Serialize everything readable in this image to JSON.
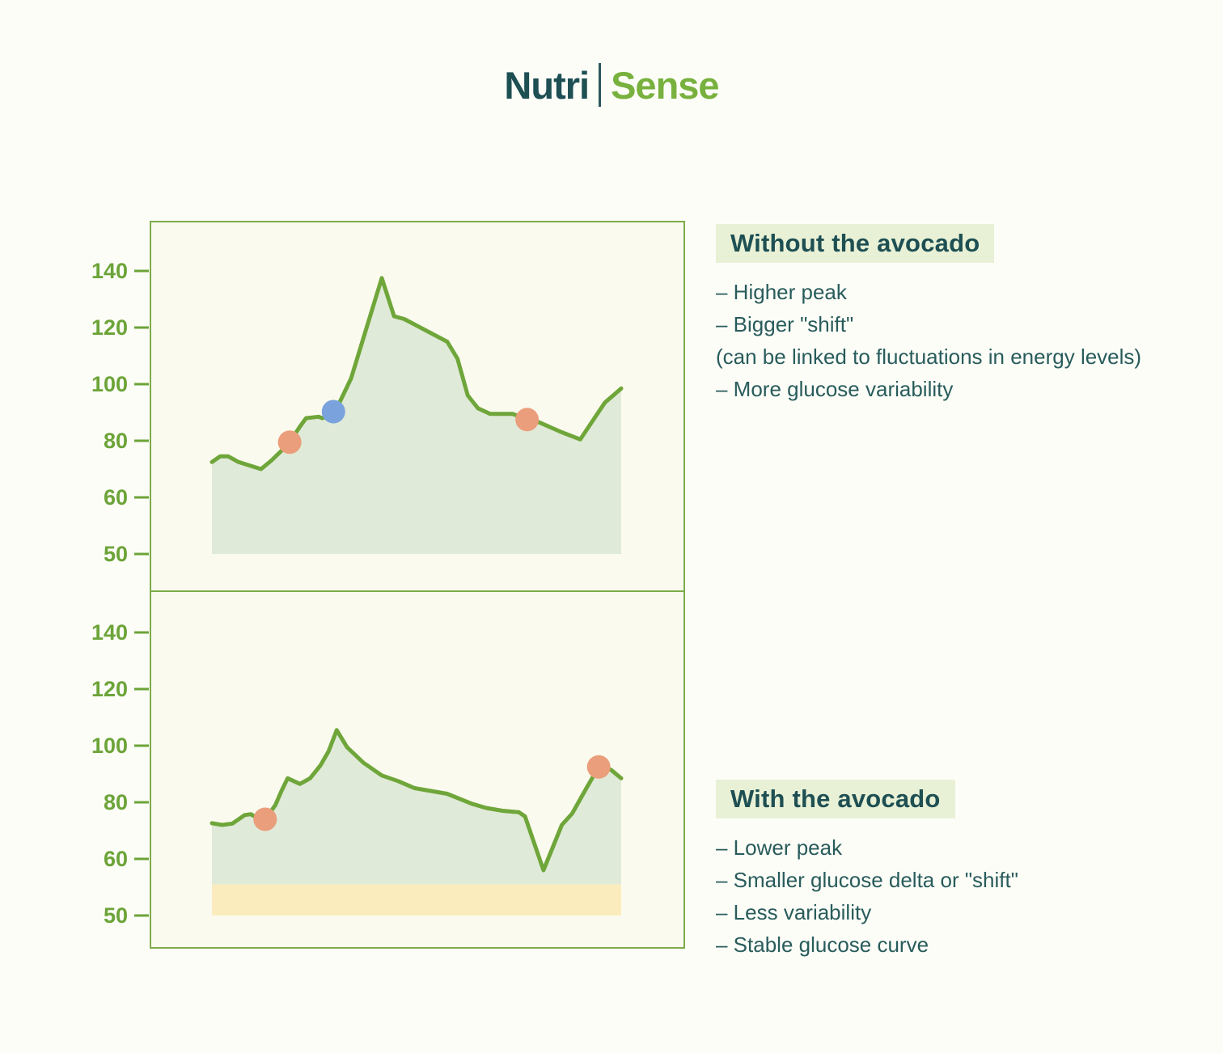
{
  "logo": {
    "part1": "Nutri",
    "part2": "Sense"
  },
  "colors": {
    "brand_dark": "#1d4f53",
    "brand_green": "#78b13e",
    "axis_green": "#6ca438",
    "curve_green": "#6fa63a",
    "box_border": "#7cab4a",
    "box_bg": "#fbfaee",
    "area_fill": "#dfe9d6",
    "low_band_fill": "#fbecbe",
    "marker_orange": "#eb9e7b",
    "marker_blue": "#7aa2dc",
    "highlight_bg": "#e8f1d6",
    "text_teal": "#285c5b"
  },
  "panels": [
    {
      "heading": "Without the avocado",
      "bullets": [
        "– Higher peak",
        "– Bigger \"shift\"",
        "(can be linked to fluctuations in energy levels)",
        "– More glucose variability"
      ]
    },
    {
      "heading": "With the avocado",
      "bullets": [
        "– Lower peak",
        "– Smaller glucose delta or \"shift\"",
        "– Less variability",
        "– Stable glucose curve"
      ]
    }
  ],
  "chart_data": [
    {
      "type": "area",
      "title": "Without the avocado",
      "yticks": [
        140,
        120,
        100,
        80,
        60,
        50
      ],
      "ylim": [
        50,
        150
      ],
      "grid": false,
      "legend": false,
      "fill_base_value": 50,
      "points": [
        [
          0,
          72.5
        ],
        [
          2,
          74.5
        ],
        [
          4,
          74.5
        ],
        [
          6.5,
          72.5
        ],
        [
          12,
          70
        ],
        [
          14.5,
          73
        ],
        [
          17,
          76.5
        ],
        [
          19,
          79.5
        ],
        [
          21.5,
          85
        ],
        [
          23,
          88
        ],
        [
          26,
          88.5
        ],
        [
          27,
          88
        ],
        [
          29,
          89.5
        ],
        [
          29.7,
          90.3
        ],
        [
          31,
          93
        ],
        [
          34,
          102
        ],
        [
          41.5,
          137.5
        ],
        [
          44.5,
          124
        ],
        [
          47,
          123
        ],
        [
          57.5,
          115
        ],
        [
          60,
          109
        ],
        [
          62.5,
          96
        ],
        [
          65,
          91.5
        ],
        [
          68,
          89.5
        ],
        [
          73.5,
          89.5
        ],
        [
          77,
          87.5
        ],
        [
          80,
          86.5
        ],
        [
          85.5,
          83
        ],
        [
          90,
          80.5
        ],
        [
          93,
          87
        ],
        [
          96,
          93.5
        ],
        [
          100,
          98.5
        ]
      ],
      "markers": [
        {
          "t": 19,
          "value": 79.5,
          "color": "orange"
        },
        {
          "t": 29.7,
          "value": 90.3,
          "color": "blue"
        },
        {
          "t": 77,
          "value": 87.5,
          "color": "orange"
        }
      ]
    },
    {
      "type": "area",
      "title": "With the avocado",
      "yticks": [
        140,
        120,
        100,
        80,
        60,
        50
      ],
      "ylim": [
        50,
        150
      ],
      "grid": false,
      "legend": false,
      "fill_base_value": 55.5,
      "low_band": {
        "top": 55.5,
        "bottom": 50
      },
      "points": [
        [
          0,
          72.6
        ],
        [
          2.5,
          72
        ],
        [
          5,
          72.5
        ],
        [
          8,
          75.5
        ],
        [
          9.5,
          75.8
        ],
        [
          11,
          74.5
        ],
        [
          13,
          74
        ],
        [
          15.5,
          79
        ],
        [
          17,
          84
        ],
        [
          18.5,
          88.5
        ],
        [
          20,
          87.5
        ],
        [
          21.5,
          86.5
        ],
        [
          24,
          88.5
        ],
        [
          26.5,
          93
        ],
        [
          28.5,
          98
        ],
        [
          30.5,
          105.5
        ],
        [
          33,
          99.5
        ],
        [
          37,
          94
        ],
        [
          41.5,
          89.5
        ],
        [
          45.5,
          87.5
        ],
        [
          49.5,
          85
        ],
        [
          53.5,
          84
        ],
        [
          57.5,
          83
        ],
        [
          63.5,
          79.5
        ],
        [
          67,
          78
        ],
        [
          71,
          77
        ],
        [
          75,
          76.5
        ],
        [
          76.5,
          75
        ],
        [
          81,
          58
        ],
        [
          85.5,
          72
        ],
        [
          88,
          76
        ],
        [
          91.5,
          85
        ],
        [
          94.5,
          92.5
        ],
        [
          97.5,
          91.5
        ],
        [
          100,
          88.5
        ]
      ],
      "markers": [
        {
          "t": 13,
          "value": 74,
          "color": "orange"
        },
        {
          "t": 94.5,
          "value": 92.5,
          "color": "orange"
        }
      ]
    }
  ]
}
